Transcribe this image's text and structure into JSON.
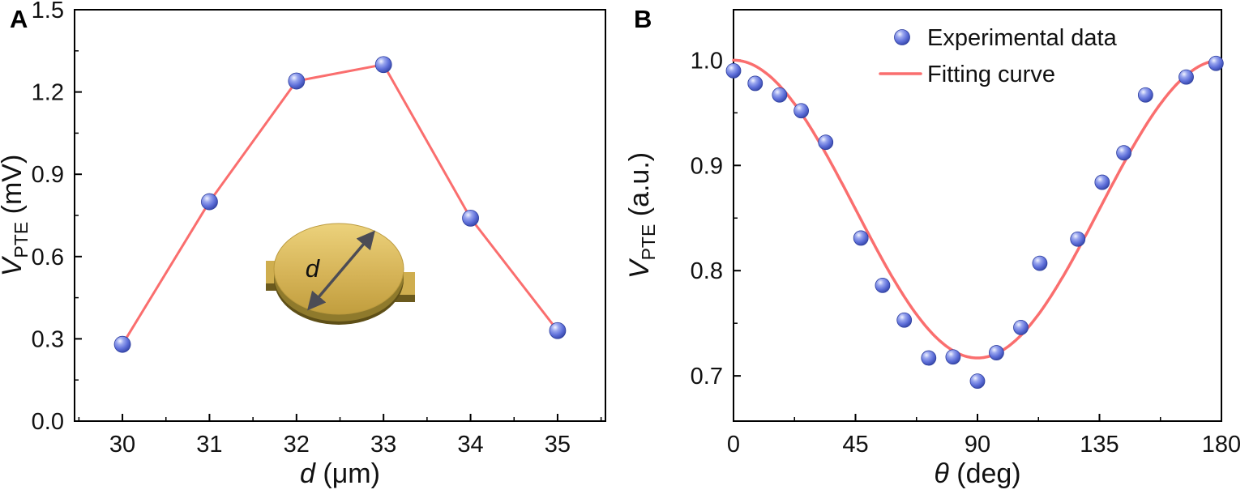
{
  "figure": {
    "background": "#ffffff"
  },
  "chart_data": [
    {
      "id": "A",
      "type": "line",
      "panel_label": "A",
      "xlabel": {
        "variable": "d",
        "unit": " (μm)"
      },
      "ylabel": {
        "variable": "V",
        "subscript": "PTE",
        "unit": " (mV)"
      },
      "xlim": [
        29.45,
        35.55
      ],
      "ylim": [
        0,
        1.5
      ],
      "xticks": [
        30,
        31,
        32,
        33,
        34,
        35
      ],
      "xtick_labels": [
        "30",
        "31",
        "32",
        "33",
        "34",
        "35"
      ],
      "yticks": [
        0,
        0.3,
        0.6,
        0.9,
        1.2,
        1.5
      ],
      "ytick_labels": [
        "0.0",
        "0.3",
        "0.6",
        "0.9",
        "1.2",
        "1.5"
      ],
      "series": [
        {
          "type": "line+scatter",
          "x": [
            30,
            31,
            32,
            33,
            34,
            35
          ],
          "y": [
            0.28,
            0.8,
            1.24,
            1.3,
            0.74,
            0.33
          ]
        }
      ],
      "colors": {
        "marker": "#5b6cd9",
        "line": "#fa6e6e"
      },
      "inset": {
        "annotation": "d",
        "description": "gold-microdisc-with-diameter-arrow",
        "disc_color": "#d6b458",
        "disc_side_color": "#8f7a2c",
        "arrow_color": "#4c4c55"
      }
    },
    {
      "id": "B",
      "type": "scatter",
      "panel_label": "B",
      "xlabel": {
        "variable": "θ",
        "unit": " (deg)"
      },
      "ylabel": {
        "variable": "V",
        "subscript": "PTE",
        "unit": " (a.u.)"
      },
      "xlim": [
        0,
        180
      ],
      "ylim": [
        0.657,
        1.048
      ],
      "xticks": [
        0,
        45,
        90,
        135,
        180
      ],
      "xtick_labels": [
        "0",
        "45",
        "90",
        "135",
        "180"
      ],
      "yticks": [
        0.7,
        0.8,
        0.9,
        1.0
      ],
      "ytick_labels": [
        "0.7",
        "0.8",
        "0.9",
        "1.0"
      ],
      "legend": {
        "position": "top-center-inside"
      },
      "series": [
        {
          "name": "Experimental data",
          "type": "scatter",
          "x": [
            0,
            8,
            17,
            25,
            34,
            47,
            55,
            63,
            72,
            81,
            90,
            97,
            106,
            113,
            127,
            136,
            144,
            152,
            167,
            178
          ],
          "y": [
            0.99,
            0.978,
            0.967,
            0.952,
            0.922,
            0.831,
            0.786,
            0.753,
            0.717,
            0.718,
            0.695,
            0.722,
            0.746,
            0.807,
            0.83,
            0.884,
            0.912,
            0.967,
            0.984,
            0.997
          ]
        },
        {
          "name": "Fitting curve",
          "type": "fit-line",
          "fit": {
            "model": "offset + amplitude*cos^2(theta)",
            "offset": 0.717,
            "amplitude": 0.283
          }
        }
      ],
      "colors": {
        "marker": "#5b6cd9",
        "line": "#fa6e6e"
      }
    }
  ]
}
